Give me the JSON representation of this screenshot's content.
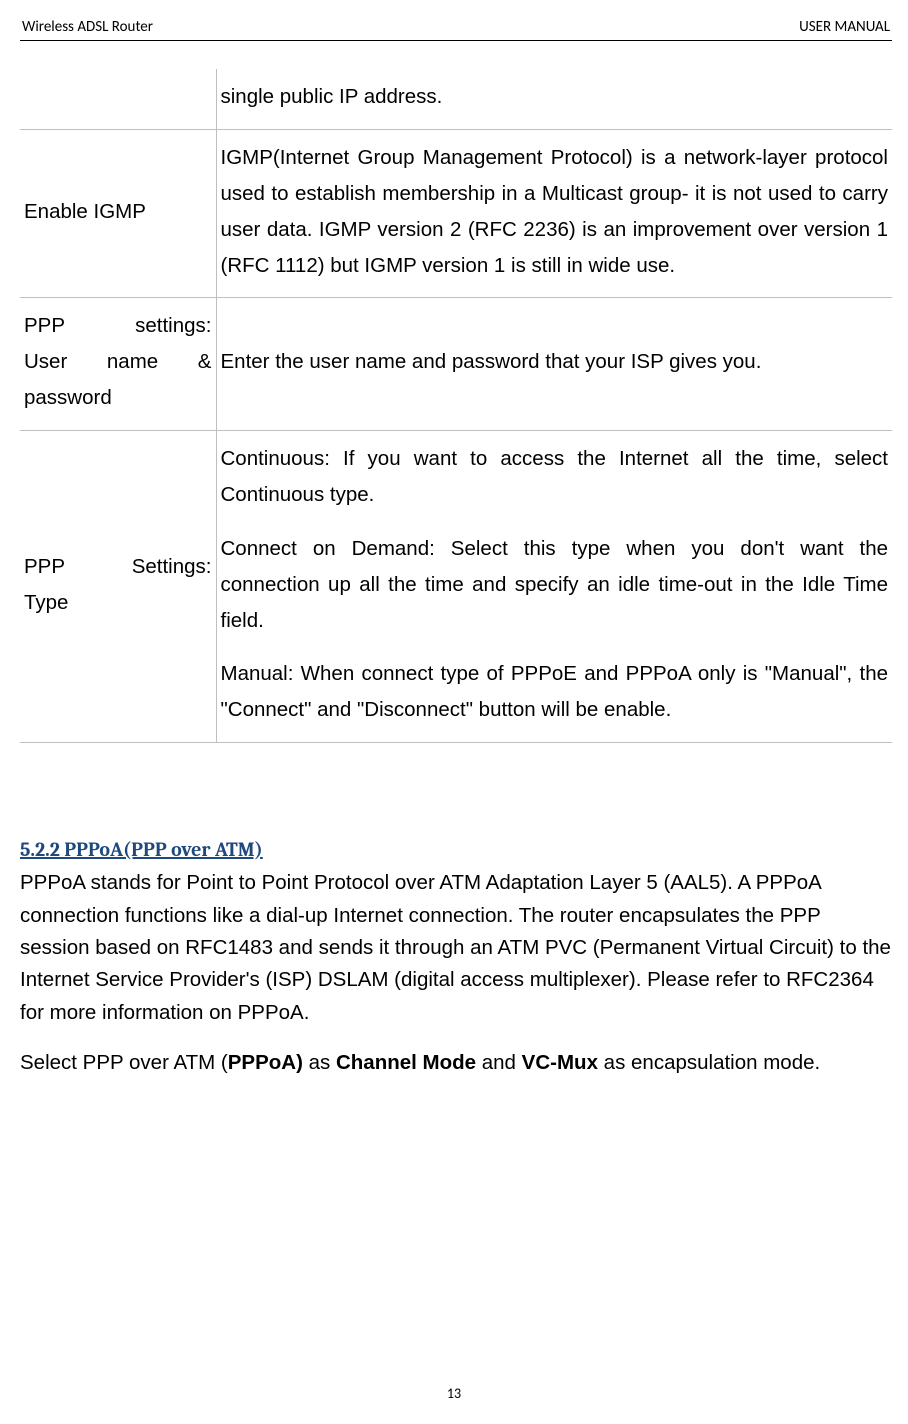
{
  "header": {
    "left": "Wireless ADSL Router",
    "right": "USER MANUAL"
  },
  "table": {
    "rows": [
      {
        "left_lines": [
          ""
        ],
        "right_paragraphs": [
          "single public IP address."
        ]
      },
      {
        "left_lines": [
          "Enable IGMP"
        ],
        "right_paragraphs": [
          "IGMP(Internet Group Management Protocol) is a network-layer protocol used to establish membership in a Multicast group- it is not used to carry user data. IGMP version 2 (RFC 2236) is an improvement over version 1 (RFC 1112) but IGMP version 1 is still in wide use."
        ]
      },
      {
        "left_lines": [
          "PPP settings:",
          "User name &",
          "password"
        ],
        "left_justified": [
          true,
          true,
          false
        ],
        "right_paragraphs": [
          "Enter the user name and password that your ISP gives you."
        ]
      },
      {
        "left_lines": [
          "PPP Settings:",
          "Type"
        ],
        "left_justified": [
          true,
          false
        ],
        "right_paragraphs": [
          "Continuous: If you want to access the Internet all the time, select Continuous type.",
          "Connect on Demand: Select this type when you don't want the connection up all the time and specify an idle time-out in the Idle Time field.",
          "Manual: When connect type of PPPoE and PPPoA only is \"Manual\", the \"Connect\" and \"Disconnect\" button will be enable."
        ]
      }
    ]
  },
  "section": {
    "heading": "5.2.2 PPPoA(PPP over ATM)",
    "paragraph1": "PPPoA stands for Point to Point Protocol over ATM Adaptation Layer 5 (AAL5). A PPPoA connection functions like a dial-up Internet connection. The router encapsulates the PPP session based on RFC1483 and sends it through an ATM PVC (Permanent Virtual Circuit) to the Internet Service Provider's (ISP) DSLAM (digital access multiplexer). Please refer to RFC2364 for more information on PPPoA.",
    "p2_pre": "Select PPP over ATM (",
    "p2_b1": "PPPoA)",
    "p2_mid1": " as ",
    "p2_b2": "Channel Mode",
    "p2_mid2": " and ",
    "p2_b3": "VC-Mux",
    "p2_post": " as encapsulation mode."
  },
  "footer": {
    "page_number": "13"
  },
  "colors": {
    "heading": "#1f497d",
    "border": "#bfbfbf",
    "text": "#000000",
    "background": "#ffffff"
  },
  "fonts": {
    "header": "Calibri",
    "body": "Arial",
    "heading": "Cambria"
  }
}
